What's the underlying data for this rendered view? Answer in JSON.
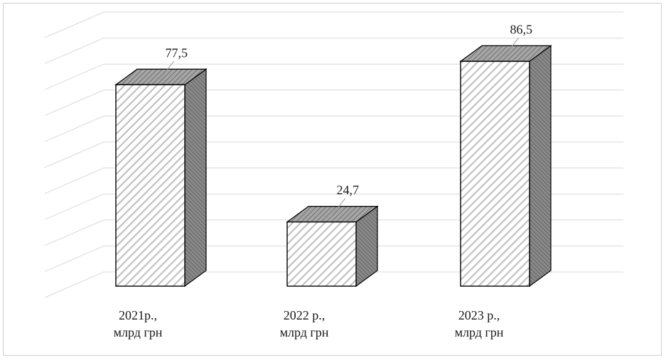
{
  "chart_data": {
    "type": "bar",
    "style": "3d-column",
    "categories": [
      {
        "year": "2021р.,",
        "unit": "млрд грн"
      },
      {
        "year": "2022 р.,",
        "unit": "млрд грн"
      },
      {
        "year": "2023 р.,",
        "unit": "млрд грн"
      }
    ],
    "values": [
      77.5,
      24.7,
      86.5
    ],
    "value_labels": [
      "77,5",
      "24,7",
      "86,5"
    ],
    "ylim": [
      0,
      100
    ],
    "grid": true,
    "title": "",
    "xlabel": "",
    "ylabel": "",
    "colors": {
      "front_hatch": "#c8c8c8",
      "top_fill": "#9a9a9a",
      "side_fill": "#7a7a7a",
      "edge": "#000000",
      "grid": "#d9d9d9"
    }
  }
}
